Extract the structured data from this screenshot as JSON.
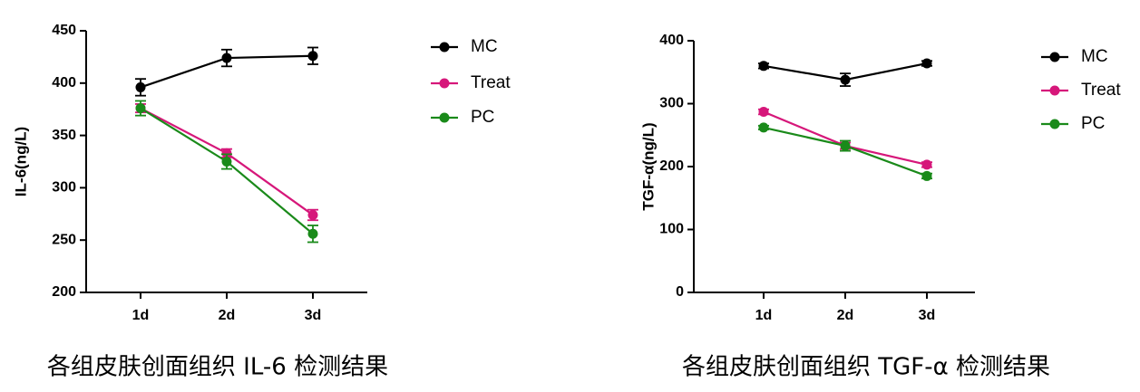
{
  "chart_data": [
    {
      "type": "line",
      "ylabel": "IL-6(ng/L)",
      "caption": "各组皮肤创面组织 IL-6 检测结果",
      "categories": [
        "1d",
        "2d",
        "3d"
      ],
      "ylim": [
        200,
        450
      ],
      "yticks": [
        200,
        250,
        300,
        350,
        400,
        450
      ],
      "series": [
        {
          "name": "MC",
          "color": "#000000",
          "values": [
            396,
            424,
            426
          ],
          "errors": [
            8,
            8,
            8
          ]
        },
        {
          "name": "Treat",
          "color": "#d6177a",
          "values": [
            376,
            333,
            274
          ],
          "errors": [
            4,
            4,
            5
          ]
        },
        {
          "name": "PC",
          "color": "#1a8a1a",
          "values": [
            376,
            325,
            256
          ],
          "errors": [
            7,
            7,
            8
          ]
        }
      ]
    },
    {
      "type": "line",
      "ylabel": "TGF-α(ng/L)",
      "caption": "各组皮肤创面组织 TGF-α 检测结果",
      "categories": [
        "1d",
        "2d",
        "3d"
      ],
      "ylim": [
        0,
        400
      ],
      "yticks": [
        0,
        100,
        200,
        300,
        400
      ],
      "series": [
        {
          "name": "MC",
          "color": "#000000",
          "values": [
            360,
            338,
            364
          ],
          "errors": [
            4,
            10,
            4
          ]
        },
        {
          "name": "Treat",
          "color": "#d6177a",
          "values": [
            287,
            233,
            203
          ],
          "errors": [
            4,
            5,
            4
          ]
        },
        {
          "name": "PC",
          "color": "#1a8a1a",
          "values": [
            262,
            233,
            185
          ],
          "errors": [
            3,
            8,
            4
          ]
        }
      ]
    }
  ]
}
